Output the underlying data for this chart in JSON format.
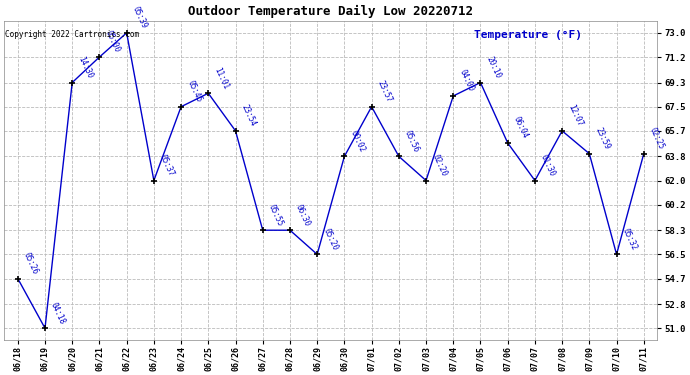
{
  "title": "Outdoor Temperature Daily Low 20220712",
  "ylabel": "Temperature (°F)",
  "copyright": "Copyright 2022 Cartronics.com",
  "background_color": "#ffffff",
  "line_color": "#0000cc",
  "text_color": "#0000cc",
  "marker_color": "#000000",
  "grid_color": "#bbbbbb",
  "ylim_min": 50.1,
  "ylim_max": 73.9,
  "yticks": [
    51.0,
    52.8,
    54.7,
    56.5,
    58.3,
    60.2,
    62.0,
    63.8,
    65.7,
    67.5,
    69.3,
    71.2,
    73.0
  ],
  "dates": [
    "06/18",
    "06/19",
    "06/20",
    "06/21",
    "06/22",
    "06/23",
    "06/24",
    "06/25",
    "06/26",
    "06/27",
    "06/28",
    "06/29",
    "06/30",
    "07/01",
    "07/02",
    "07/03",
    "07/04",
    "07/05",
    "07/06",
    "07/07",
    "07/08",
    "07/09",
    "07/10",
    "07/11"
  ],
  "values": [
    54.7,
    51.0,
    69.3,
    71.2,
    73.0,
    62.0,
    67.5,
    68.5,
    65.7,
    58.3,
    58.3,
    56.5,
    63.8,
    67.5,
    63.8,
    62.0,
    68.3,
    69.3,
    64.8,
    62.0,
    65.7,
    64.0,
    56.5,
    64.0
  ],
  "labels": [
    "05:26",
    "04:18",
    "14:30",
    "05:00",
    "05:39",
    "05:37",
    "05:45",
    "11:01",
    "23:54",
    "05:55",
    "06:30",
    "05:20",
    "00:02",
    "23:57",
    "05:56",
    "02:20",
    "04:00",
    "20:10",
    "06:04",
    "01:30",
    "12:07",
    "23:59",
    "05:32",
    "02:25"
  ]
}
